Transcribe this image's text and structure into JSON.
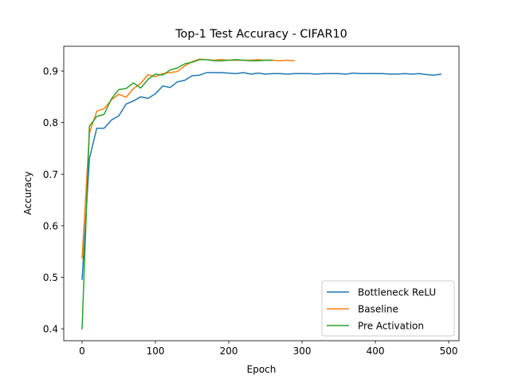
{
  "chart_data": {
    "type": "line",
    "title": "Top-1 Test Accuracy - CIFAR10",
    "xlabel": "Epoch",
    "ylabel": "Accuracy",
    "xlim": [
      -25,
      514
    ],
    "ylim": [
      0.377,
      0.948
    ],
    "xticks": [
      0,
      100,
      200,
      300,
      400,
      500
    ],
    "yticks": [
      0.4,
      0.5,
      0.6,
      0.7,
      0.8,
      0.9
    ],
    "grid": false,
    "legend_position": "lower-right",
    "series": [
      {
        "name": "Bottleneck ReLU",
        "color": "#1f77b4",
        "x": [
          0,
          10,
          20,
          30,
          40,
          50,
          60,
          70,
          80,
          90,
          100,
          110,
          120,
          130,
          140,
          150,
          160,
          170,
          180,
          190,
          200,
          210,
          220,
          230,
          240,
          250,
          260,
          270,
          280,
          290,
          300,
          310,
          320,
          330,
          340,
          350,
          360,
          370,
          380,
          390,
          400,
          410,
          420,
          430,
          440,
          450,
          460,
          470,
          480,
          490
        ],
        "values": [
          0.495,
          0.73,
          0.789,
          0.789,
          0.805,
          0.813,
          0.836,
          0.842,
          0.85,
          0.847,
          0.856,
          0.871,
          0.868,
          0.879,
          0.882,
          0.891,
          0.892,
          0.897,
          0.897,
          0.897,
          0.896,
          0.895,
          0.897,
          0.894,
          0.896,
          0.894,
          0.895,
          0.895,
          0.894,
          0.895,
          0.895,
          0.895,
          0.894,
          0.895,
          0.895,
          0.895,
          0.894,
          0.896,
          0.895,
          0.895,
          0.895,
          0.895,
          0.894,
          0.894,
          0.895,
          0.894,
          0.895,
          0.893,
          0.892,
          0.894
        ]
      },
      {
        "name": "Baseline",
        "color": "#ff7f0e",
        "x": [
          0,
          10,
          20,
          30,
          40,
          50,
          60,
          70,
          80,
          90,
          100,
          110,
          120,
          130,
          140,
          150,
          160,
          170,
          180,
          190,
          200,
          210,
          220,
          230,
          240,
          250,
          260,
          270,
          280,
          290
        ],
        "values": [
          0.536,
          0.78,
          0.822,
          0.827,
          0.844,
          0.855,
          0.849,
          0.866,
          0.876,
          0.893,
          0.889,
          0.895,
          0.897,
          0.899,
          0.91,
          0.918,
          0.923,
          0.922,
          0.921,
          0.922,
          0.921,
          0.921,
          0.921,
          0.921,
          0.922,
          0.921,
          0.921,
          0.92,
          0.921,
          0.92
        ]
      },
      {
        "name": "Pre Activation",
        "color": "#2ca02c",
        "x": [
          0,
          10,
          20,
          30,
          40,
          50,
          60,
          70,
          80,
          90,
          100,
          110,
          120,
          130,
          140,
          150,
          160,
          170,
          180,
          190,
          200,
          210,
          220,
          230,
          240,
          250,
          260
        ],
        "values": [
          0.399,
          0.793,
          0.812,
          0.816,
          0.846,
          0.864,
          0.866,
          0.877,
          0.867,
          0.884,
          0.894,
          0.892,
          0.902,
          0.906,
          0.914,
          0.917,
          0.922,
          0.922,
          0.92,
          0.92,
          0.921,
          0.922,
          0.921,
          0.92,
          0.92,
          0.921,
          0.921
        ]
      }
    ]
  }
}
